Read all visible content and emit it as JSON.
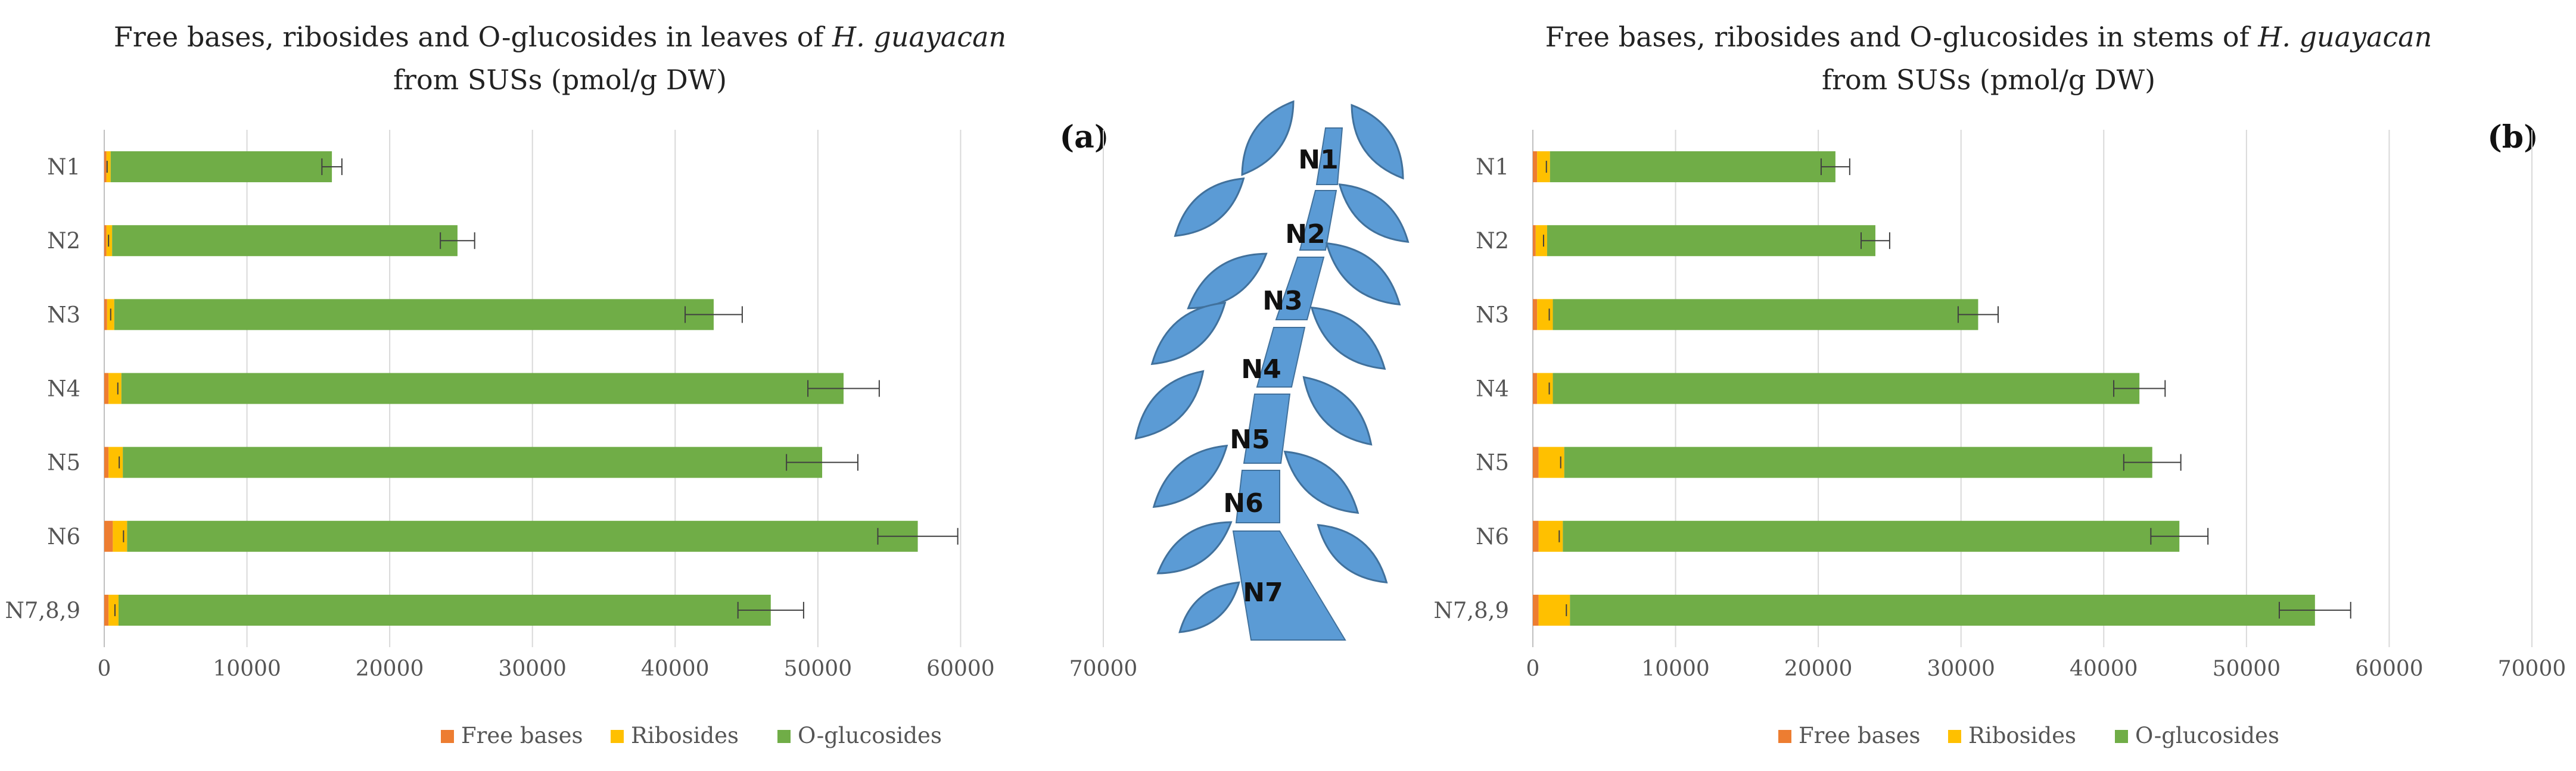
{
  "colors": {
    "free_bases": "#ED7D31",
    "ribosides": "#FFC000",
    "o_glucosides": "#70AD47",
    "grid": "#d9d9d9",
    "leaf": "#5B9BD5",
    "leaf_edge": "#41719C",
    "error": "#404040"
  },
  "chart_data": [
    {
      "type": "bar",
      "orientation": "horizontal",
      "stacked": true,
      "panel_label": "(a)",
      "title_line1_prefix": "Free bases, ribosides and O-glucosides in leaves of ",
      "title_species": "H. guayacan",
      "title_line2": "from SUSs (pmol/g DW)",
      "categories": [
        "N1",
        "N2",
        "N3",
        "N4",
        "N5",
        "N6",
        "N7,8,9"
      ],
      "series": [
        {
          "name": "Free bases",
          "values": [
            150,
            150,
            200,
            300,
            300,
            600,
            300
          ]
        },
        {
          "name": "Ribosides",
          "values": [
            300,
            400,
            500,
            900,
            1000,
            1000,
            700
          ]
        },
        {
          "name": "O-glucosides",
          "values": [
            15500,
            24200,
            42000,
            50600,
            49000,
            55400,
            45700
          ]
        }
      ],
      "totals": [
        15950,
        24750,
        42700,
        51800,
        50300,
        57000,
        46700
      ],
      "error": [
        700,
        1200,
        2000,
        2500,
        2500,
        2800,
        2300
      ],
      "xlim": [
        0,
        70000
      ],
      "xticks": [
        "0",
        "10000",
        "20000",
        "30000",
        "40000",
        "50000",
        "60000",
        "70000"
      ],
      "tick_values": [
        0,
        10000,
        20000,
        30000,
        40000,
        50000,
        60000,
        70000
      ],
      "legend": [
        "Free bases",
        "Ribosides",
        "O-glucosides"
      ],
      "legend_position": "bottom"
    },
    {
      "type": "bar",
      "orientation": "horizontal",
      "stacked": true,
      "panel_label": "(b)",
      "title_line1_prefix": "Free bases, ribosides and O-glucosides in stems of  ",
      "title_species": "H. guayacan",
      "title_line2": "from SUSs (pmol/g DW)",
      "categories": [
        "N1",
        "N2",
        "N3",
        "N4",
        "N5",
        "N6",
        "N7,8,9"
      ],
      "series": [
        {
          "name": "Free bases",
          "values": [
            300,
            200,
            300,
            300,
            400,
            400,
            400
          ]
        },
        {
          "name": "Ribosides",
          "values": [
            900,
            800,
            1100,
            1100,
            1800,
            1700,
            2200
          ]
        },
        {
          "name": "O-glucosides",
          "values": [
            20000,
            23000,
            29800,
            41100,
            41200,
            43200,
            52200
          ]
        }
      ],
      "totals": [
        21200,
        24000,
        31200,
        42500,
        43400,
        45300,
        54800
      ],
      "error": [
        1000,
        1000,
        1400,
        1800,
        2000,
        2000,
        2500
      ],
      "xlim": [
        0,
        70000
      ],
      "xticks": [
        "0",
        "10000",
        "20000",
        "30000",
        "40000",
        "50000",
        "60000",
        "70000"
      ],
      "tick_values": [
        0,
        10000,
        20000,
        30000,
        40000,
        50000,
        60000,
        70000
      ],
      "legend": [
        "Free bases",
        "Ribosides",
        "O-glucosides"
      ],
      "legend_position": "bottom"
    }
  ],
  "diagram": {
    "node_labels": [
      "N1",
      "N2",
      "N3",
      "N4",
      "N5",
      "N6",
      "N7"
    ]
  }
}
